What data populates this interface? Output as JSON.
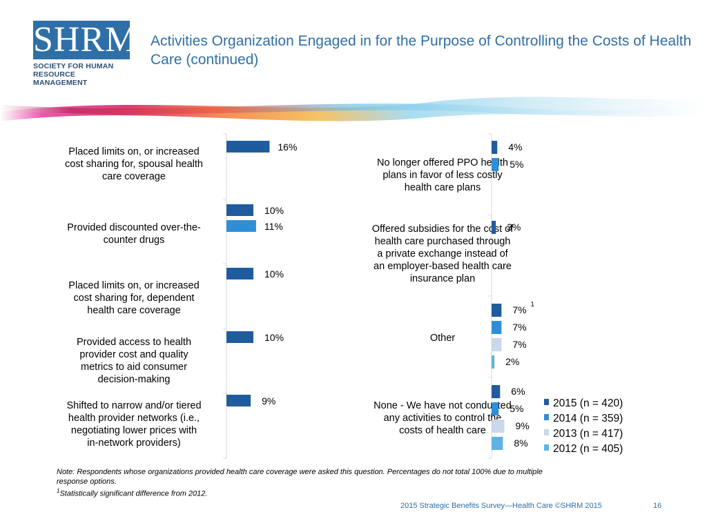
{
  "logo": {
    "text": "SHRM",
    "registered": "®",
    "tagline_line1": "SOCIETY FOR HUMAN",
    "tagline_line2": "RESOURCE MANAGEMENT"
  },
  "title": "Activities Organization Engaged in for the Purpose of Controlling the Costs of Health Care (continued)",
  "colors": {
    "s2015": "#1f5c9e",
    "s2014": "#2e8fd8",
    "s2013": "#c9d8ea",
    "s2012": "#5fb2e6",
    "text": "#000000",
    "accent": "#2f6fa7"
  },
  "chart_data": [
    {
      "type": "bar",
      "orientation": "horizontal",
      "categories": [
        {
          "lines": [
            "Placed limits on, or increased",
            "cost sharing for, spousal health",
            "care coverage"
          ]
        },
        {
          "lines": [
            "Provided discounted over-the-",
            "counter drugs"
          ]
        },
        {
          "lines": [
            "Placed limits on, or increased",
            "cost sharing for, dependent",
            "health care coverage"
          ]
        },
        {
          "lines": [
            "Provided access to health",
            "provider cost and quality",
            "metrics to aid consumer",
            "decision-making"
          ]
        },
        {
          "lines": [
            "Shifted to narrow and/or tiered",
            "health provider networks (i.e.,",
            "negotiating lower prices with",
            "in-network providers)"
          ]
        }
      ],
      "series": [
        {
          "name": "2015 (n = 420)",
          "values": [
            16,
            10,
            10,
            10,
            9
          ],
          "labels": [
            "16%",
            "10%",
            "10%",
            "10%",
            "9%"
          ]
        },
        {
          "name": "2014 (n = 359)",
          "values": [
            null,
            11,
            null,
            null,
            null
          ],
          "labels": [
            null,
            "11%",
            null,
            null,
            null
          ]
        }
      ],
      "xlim": [
        0,
        100
      ]
    },
    {
      "type": "bar",
      "orientation": "horizontal",
      "categories": [
        {
          "lines": [
            "No longer offered PPO health",
            "plans in favor of less costly",
            "health care plans"
          ]
        },
        {
          "lines": [
            "Offered subsidies for the cost of",
            "health care purchased through",
            "a private exchange instead of",
            "an employer-based health care",
            "insurance plan"
          ]
        },
        {
          "lines": [
            "Other"
          ]
        },
        {
          "lines": [
            "None - We have not conducted",
            "any activities to control the",
            "costs of health care"
          ]
        }
      ],
      "series": [
        {
          "name": "2015 (n = 420)",
          "values": [
            4,
            3,
            7,
            6
          ],
          "labels": [
            "4%",
            "3%",
            "7%",
            "6%"
          ]
        },
        {
          "name": "2014 (n = 359)",
          "values": [
            5,
            null,
            7,
            5
          ],
          "labels": [
            "5%",
            null,
            "7%",
            "5%"
          ]
        },
        {
          "name": "2013 (n = 417)",
          "values": [
            null,
            null,
            7,
            9
          ],
          "labels": [
            null,
            null,
            "7%",
            "9%"
          ]
        },
        {
          "name": "2012 (n = 405)",
          "values": [
            null,
            null,
            2,
            8
          ],
          "labels": [
            null,
            null,
            "2%",
            "8%"
          ]
        }
      ],
      "annotations": [
        {
          "text": "1",
          "category": 2,
          "series": 0
        }
      ],
      "xlim": [
        0,
        100
      ]
    }
  ],
  "legend": [
    {
      "label": "2015 (n = 420)",
      "color": "#1f5c9e"
    },
    {
      "label": "2014 (n = 359)",
      "color": "#2e8fd8"
    },
    {
      "label": "2013 (n = 417)",
      "color": "#c9d8ea"
    },
    {
      "label": "2012 (n = 405)",
      "color": "#5fb2e6"
    }
  ],
  "note": {
    "line1": "Note: Respondents whose organizations provided health care coverage were asked this question. Percentages do not total 100% due to multiple",
    "line2": "response options.",
    "footnote_mark": "1",
    "line3": "Statistically significant difference from 2012."
  },
  "footer": {
    "text": "2015 Strategic Benefits Survey—Health Care ©SHRM 2015",
    "page": "16"
  }
}
